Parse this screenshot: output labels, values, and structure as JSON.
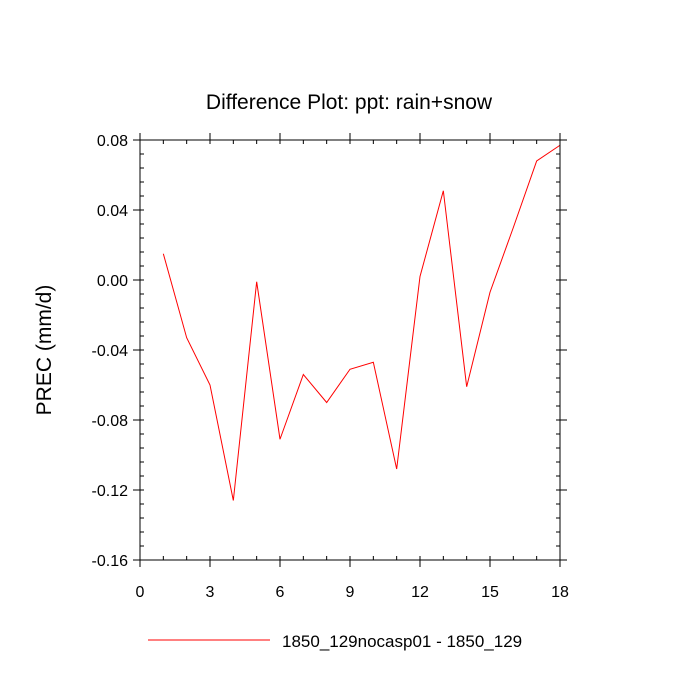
{
  "chart_data": {
    "type": "line",
    "title": "Difference Plot: ppt: rain+snow",
    "xlabel": "",
    "ylabel": "PREC  (mm/d)",
    "xlim": [
      0,
      18
    ],
    "ylim": [
      -0.16,
      0.08
    ],
    "x_major_ticks": [
      0,
      3,
      6,
      9,
      12,
      15,
      18
    ],
    "x_tick_labels": [
      "0",
      "3",
      "6",
      "9",
      "12",
      "15",
      "18"
    ],
    "y_major_ticks": [
      -0.16,
      -0.12,
      -0.08,
      -0.04,
      0.0,
      0.04,
      0.08
    ],
    "y_tick_labels": [
      "-0.16",
      "-0.12",
      "-0.08",
      "-0.04",
      "0.00",
      "0.04",
      "0.08"
    ],
    "x_minor_step": 1,
    "y_minor_step": 0.008,
    "grid": false,
    "legend_position": "bottom",
    "series": [
      {
        "name": "1850_129nocasp01 - 1850_129",
        "color": "#ff0000",
        "x": [
          1,
          2,
          3,
          4,
          5,
          6,
          7,
          8,
          9,
          10,
          11,
          12,
          13,
          14,
          15,
          16,
          17,
          18
        ],
        "values": [
          0.015,
          -0.033,
          -0.06,
          -0.126,
          -0.001,
          -0.091,
          -0.054,
          -0.07,
          -0.051,
          -0.047,
          -0.108,
          0.002,
          0.051,
          -0.061,
          -0.007,
          0.03,
          0.068,
          0.077
        ]
      }
    ]
  }
}
